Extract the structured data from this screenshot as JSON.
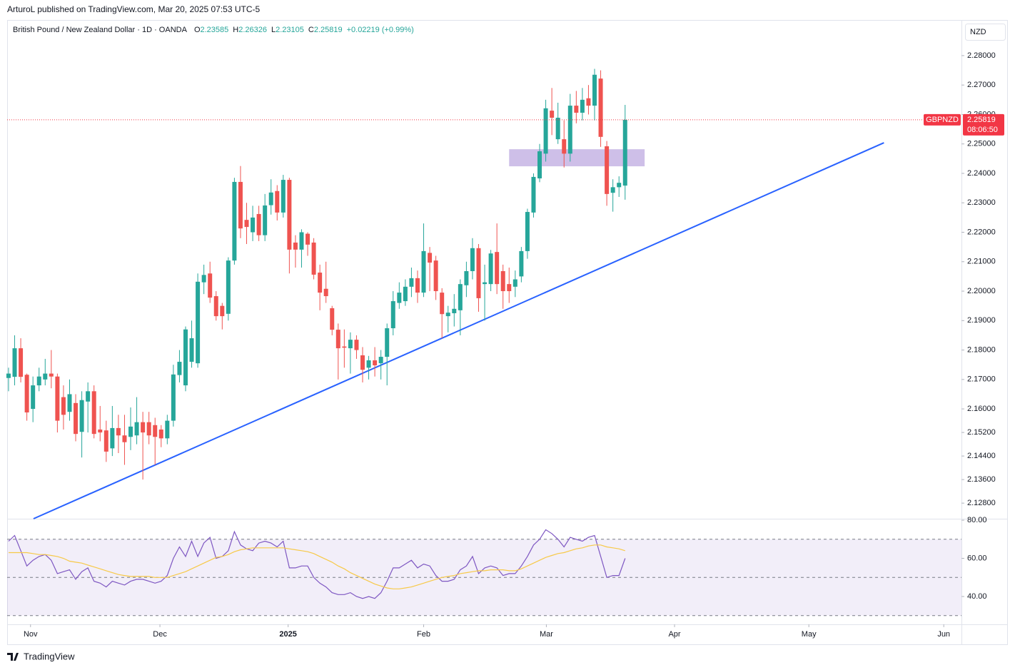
{
  "header": "ArturoL published on TradingView.com, Mar 20, 2025 07:53 UTC-5",
  "footer": "TradingView",
  "chart_data": {
    "type": "candlestick",
    "title": "British Pound / New Zealand Dollar · 1D · OANDA",
    "ohlc_labels": [
      "O",
      "H",
      "L",
      "C"
    ],
    "change": "+0.02219 (+0.99%)",
    "symbol": "GBPNZD",
    "currency": "NZD",
    "countdown": "08:06:50",
    "up_color": "#26a69a",
    "down_color": "#ef5350",
    "open": [
      2.1705,
      2.1709,
      2.1806,
      2.1716,
      2.16,
      2.168,
      2.17,
      2.172,
      2.171,
      2.164,
      2.159,
      2.162,
      2.1522,
      2.1625,
      2.166,
      2.153,
      2.1527,
      2.1466,
      2.1535,
      2.151,
      2.1505,
      2.151,
      2.1555,
      2.1555,
      2.1545,
      2.153,
      2.15,
      2.156,
      2.1715,
      2.168,
      2.176,
      2.1755,
      2.203,
      2.206,
      2.1983,
      2.195,
      2.1923,
      2.2104,
      2.2371,
      2.2242,
      2.22,
      2.2262,
      2.219,
      2.2292,
      2.234,
      2.2267,
      2.2378,
      2.2165,
      2.2141,
      2.2195,
      2.2165,
      2.2063,
      2.2008,
      2.1942,
      2.1869,
      2.1812,
      2.1806,
      2.1835,
      2.1782,
      2.174,
      2.1765,
      2.1755,
      2.1777,
      2.1874,
      2.196,
      2.1966,
      2.2015,
      2.2044,
      2.1995,
      2.213,
      2.2104,
      2.1995,
      2.1915,
      2.1925,
      2.1935,
      2.202,
      2.2068,
      2.2146,
      2.2024,
      2.2024,
      2.2133,
      2.2068,
      2.2024,
      2.2015,
      2.205,
      2.2136,
      2.2267,
      2.2383,
      2.2467,
      2.2613,
      2.2516,
      2.2516,
      2.2467,
      2.263,
      2.2606,
      2.2655,
      2.263,
      2.2722,
      2.2492,
      2.2334,
      2.2353,
      2.23585
    ],
    "high": [
      2.174,
      2.185,
      2.184,
      2.172,
      2.171,
      2.174,
      2.177,
      2.18,
      2.172,
      2.168,
      2.17,
      2.165,
      2.166,
      2.169,
      2.168,
      2.161,
      2.156,
      2.161,
      2.158,
      2.158,
      2.1605,
      2.164,
      2.159,
      2.159,
      2.157,
      2.1545,
      2.158,
      2.175,
      2.18,
      2.188,
      2.19,
      2.206,
      2.209,
      2.21,
      2.2,
      2.196,
      2.2115,
      2.2385,
      2.2425,
      2.23,
      2.229,
      2.229,
      2.233,
      2.238,
      2.236,
      2.2395,
      2.2385,
      2.219,
      2.221,
      2.22,
      2.218,
      2.209,
      2.21,
      2.195,
      2.189,
      2.187,
      2.186,
      2.185,
      2.181,
      2.178,
      2.181,
      2.18,
      2.189,
      2.2,
      2.203,
      2.204,
      2.208,
      2.207,
      2.223,
      2.215,
      2.212,
      2.201,
      2.195,
      2.199,
      2.204,
      2.21,
      2.218,
      2.216,
      2.209,
      2.214,
      2.223,
      2.209,
      2.208,
      2.207,
      2.215,
      2.228,
      2.24,
      2.25,
      2.265,
      2.269,
      2.264,
      2.258,
      2.267,
      2.268,
      2.269,
      2.27,
      2.2755,
      2.275,
      2.251,
      2.238,
      2.239,
      2.26326
    ],
    "low": [
      2.166,
      2.168,
      2.169,
      2.156,
      2.1555,
      2.166,
      2.168,
      2.167,
      2.152,
      2.153,
      2.156,
      2.149,
      2.1435,
      2.152,
      2.15,
      2.149,
      2.142,
      2.144,
      2.145,
      2.141,
      2.146,
      2.148,
      2.136,
      2.148,
      2.141,
      2.147,
      2.148,
      2.154,
      2.169,
      2.166,
      2.174,
      2.174,
      2.199,
      2.196,
      2.19,
      2.187,
      2.19,
      2.209,
      2.218,
      2.216,
      2.217,
      2.217,
      2.217,
      2.226,
      2.224,
      2.225,
      2.206,
      2.208,
      2.208,
      2.212,
      2.204,
      2.1935,
      2.196,
      2.185,
      2.17,
      2.174,
      2.172,
      2.177,
      2.169,
      2.17,
      2.171,
      2.17,
      2.168,
      2.185,
      2.194,
      2.195,
      2.198,
      2.196,
      2.198,
      2.2,
      2.197,
      2.184,
      2.186,
      2.188,
      2.185,
      2.198,
      2.204,
      2.193,
      2.19,
      2.2,
      2.199,
      2.194,
      2.196,
      2.198,
      2.203,
      2.211,
      2.225,
      2.237,
      2.244,
      2.253,
      2.25,
      2.242,
      2.244,
      2.257,
      2.258,
      2.26,
      2.258,
      2.249,
      2.229,
      2.227,
      2.232,
      2.23105
    ],
    "close": [
      2.172,
      2.1806,
      2.1709,
      2.1588,
      2.168,
      2.171,
      2.172,
      2.171,
      2.156,
      2.158,
      2.165,
      2.1515,
      2.163,
      2.166,
      2.1515,
      2.152,
      2.1455,
      2.1535,
      2.151,
      2.1487,
      2.154,
      2.1555,
      2.152,
      2.151,
      2.1505,
      2.15,
      2.156,
      2.1717,
      2.176,
      2.187,
      2.184,
      2.2032,
      2.2055,
      2.1978,
      2.1915,
      2.1915,
      2.2104,
      2.2371,
      2.2213,
      2.2218,
      2.225,
      2.219,
      2.2291,
      2.2335,
      2.2267,
      2.2378,
      2.2141,
      2.2141,
      2.22,
      2.2158,
      2.2056,
      2.1995,
      2.1983,
      2.1869,
      2.1806,
      2.1808,
      2.1835,
      2.18,
      2.1733,
      2.1765,
      2.1748,
      2.1777,
      2.1874,
      2.1966,
      2.1995,
      2.2015,
      2.2044,
      2.1995,
      2.2136,
      2.2097,
      2.2,
      2.1922,
      2.1927,
      2.194,
      2.2024,
      2.2068,
      2.2146,
      2.1976,
      2.203,
      2.2128,
      2.2024,
      2.2,
      2.2,
      2.204,
      2.2136,
      2.2269,
      2.2388,
      2.2475,
      2.2621,
      2.2589,
      2.2589,
      2.2467,
      2.263,
      2.2606,
      2.265,
      2.263,
      2.2735,
      2.2524,
      2.233,
      2.2353,
      2.2368,
      2.25819
    ],
    "ylim": [
      2.1227,
      2.2921
    ],
    "yticks": [
      {
        "value": 2.28,
        "label": "2.28000"
      },
      {
        "value": 2.27,
        "label": "2.27000"
      },
      {
        "value": 2.26,
        "label": "2.26000"
      },
      {
        "value": 2.25,
        "label": "2.25000"
      },
      {
        "value": 2.24,
        "label": "2.24000"
      },
      {
        "value": 2.23,
        "label": "2.23000"
      },
      {
        "value": 2.22,
        "label": "2.22000"
      },
      {
        "value": 2.21,
        "label": "2.21000"
      },
      {
        "value": 2.2,
        "label": "2.20000"
      },
      {
        "value": 2.19,
        "label": "2.19000"
      },
      {
        "value": 2.18,
        "label": "2.18000"
      },
      {
        "value": 2.17,
        "label": "2.17000"
      },
      {
        "value": 2.16,
        "label": "2.16000"
      },
      {
        "value": 2.152,
        "label": "2.15200"
      },
      {
        "value": 2.144,
        "label": "2.14400"
      },
      {
        "value": 2.136,
        "label": "2.13600"
      },
      {
        "value": 2.128,
        "label": "2.12800"
      }
    ],
    "xlim": [
      -0.23,
      156.1
    ],
    "xticks": [
      {
        "value": 3.6,
        "label": "Nov"
      },
      {
        "value": 24.8,
        "label": "Dec"
      },
      {
        "value": 45.8,
        "label": "2025"
      },
      {
        "value": 68.0,
        "label": "Feb"
      },
      {
        "value": 88.1,
        "label": "Mar"
      },
      {
        "value": 109.1,
        "label": "Apr"
      },
      {
        "value": 131.1,
        "label": "May"
      },
      {
        "value": 153.2,
        "label": "Jun"
      }
    ],
    "grid": false,
    "last_price_color": "#f23645",
    "trendline": {
      "x": [
        4.09,
        143.4
      ],
      "y": [
        2.1227,
        2.2504
      ],
      "color": "#2962ff"
    },
    "zone": {
      "x": [
        82.0,
        104.2
      ],
      "y": [
        2.2424,
        2.2482
      ],
      "color": "#b39ddb"
    },
    "rsi": {
      "type": "line",
      "ylim": [
        25.4,
        80.4
      ],
      "yticks": [
        {
          "value": 80,
          "label": "80.00"
        },
        {
          "value": 60,
          "label": "60.00"
        },
        {
          "value": 40,
          "label": "40.00"
        }
      ],
      "levels": [
        70,
        50,
        30
      ],
      "band_color": "#7e57c2",
      "series": [
        {
          "color": "#7e57c2",
          "values": [
            69,
            72,
            64,
            56,
            59,
            61,
            62,
            59,
            52,
            53,
            54,
            49,
            53,
            55,
            48,
            47,
            45,
            48,
            47,
            46,
            48,
            49,
            49,
            48,
            47,
            48,
            51,
            60,
            66,
            61,
            69,
            61,
            68,
            71,
            60,
            61,
            64,
            74,
            67,
            65,
            64,
            68,
            69,
            68,
            66,
            69,
            55,
            55,
            56,
            56,
            50,
            47,
            45,
            42,
            41,
            41,
            42,
            40,
            39,
            40,
            39,
            42,
            48,
            55,
            55,
            57,
            59,
            55,
            57,
            56,
            51,
            48,
            48,
            49,
            54,
            56,
            61,
            52,
            55,
            56,
            55,
            51,
            52,
            52,
            56,
            61,
            67,
            70,
            75,
            73,
            70,
            66,
            71,
            70,
            69,
            71,
            72,
            61,
            50,
            51,
            51,
            60
          ]
        },
        {
          "color": "#f7c948",
          "values": [
            63,
            63,
            63,
            63,
            62.5,
            62,
            62,
            61.5,
            61,
            60,
            58.5,
            58,
            57.5,
            56.5,
            55.5,
            54.5,
            53.5,
            52.5,
            51.5,
            51,
            50.5,
            50.5,
            50.5,
            50.5,
            50,
            50,
            50,
            51,
            52,
            53,
            54.5,
            56,
            57.5,
            59,
            60.5,
            61,
            62,
            63.5,
            64.5,
            65,
            65.5,
            65.5,
            65.5,
            65.5,
            65.5,
            65.5,
            65,
            64.5,
            64,
            63.5,
            62.5,
            61,
            59.5,
            58,
            56,
            54.5,
            52.5,
            51,
            49.5,
            48,
            46.5,
            45.5,
            44.5,
            44,
            44,
            44.5,
            45,
            46,
            47,
            48,
            49,
            50,
            50.5,
            51,
            52,
            52.5,
            53,
            53.5,
            53.5,
            54,
            54,
            54,
            53.5,
            53.5,
            54.5,
            56,
            57.5,
            59,
            60.5,
            61.5,
            62.5,
            63,
            64,
            65,
            65.5,
            66.5,
            67,
            67,
            66,
            65.5,
            65,
            64
          ]
        }
      ]
    }
  }
}
